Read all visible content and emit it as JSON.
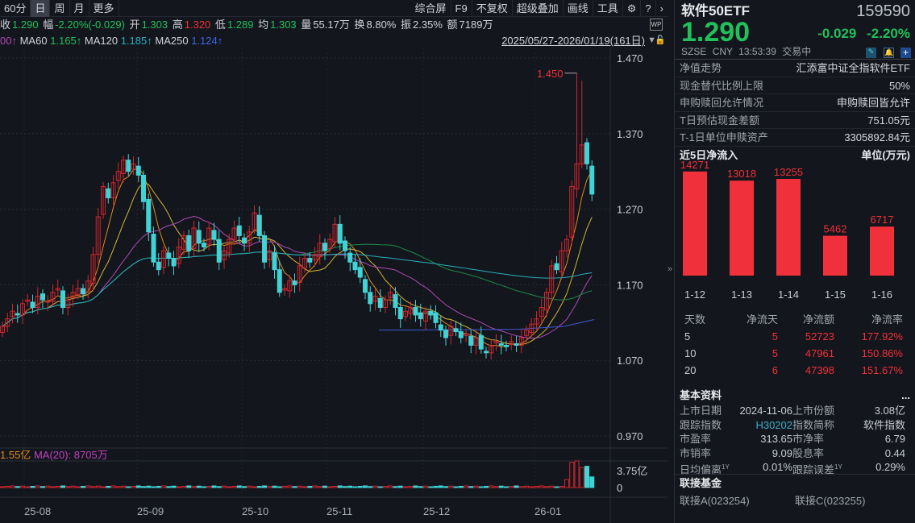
{
  "toolbar": {
    "periods": [
      "60分",
      "日",
      "周",
      "月",
      "更多"
    ],
    "active": "日",
    "right": [
      "综合屏",
      "F9",
      "不复权",
      "超级叠加",
      "画线",
      "工具"
    ]
  },
  "info": {
    "close_label": "收",
    "close": "1.290",
    "range_label": "幅",
    "range": "-2.20%(-0.029)",
    "open_label": "开",
    "open": "1.303",
    "high_label": "高",
    "high": "1.320",
    "low_label": "低",
    "low": "1.289",
    "avg_label": "均",
    "avg": "1.303",
    "vol_label": "量",
    "vol": "55.17万",
    "turn_label": "换",
    "turn": "8.80%",
    "amp_label": "振",
    "amp": "2.35%",
    "amt_label": "额",
    "amt": "7189万"
  },
  "ma": {
    "ma30_tail": "00↑",
    "ma60_label": "MA60",
    "ma60": "1.165↑",
    "ma120_label": "MA120",
    "ma120": "1.185↑",
    "ma250_label": "MA250",
    "ma250": "1.124↑"
  },
  "date_range": "2025/05/27-2026/01/19(161日)",
  "volume_info": {
    "vol": "1.55亿",
    "ma20": "MA(20): 8705万",
    "axis_top": "3.75亿",
    "axis_zero": "0"
  },
  "colors": {
    "up": "#d0262e",
    "down": "#3fd3d6",
    "ma5": "#e08a1e",
    "ma10": "#d6b43a",
    "ma20": "#b04ab8",
    "ma60": "#1e8a4a",
    "ma120": "#2ab0c0",
    "ma250": "#3a5ad8"
  },
  "chart_data": {
    "type": "candlestick",
    "y_ticks": [
      "1.470",
      "1.370",
      "1.270",
      "1.170",
      "1.070",
      "0.970"
    ],
    "ylim": [
      0.97,
      1.47
    ],
    "x_ticks": [
      "25-08",
      "25-09",
      "25-10",
      "25-11",
      "25-12",
      "26-01"
    ],
    "max_label": "1.450",
    "max_value": 1.45,
    "close": [
      1.115,
      1.125,
      1.135,
      1.13,
      1.145,
      1.15,
      1.14,
      1.155,
      1.15,
      1.148,
      1.16,
      1.165,
      1.14,
      1.15,
      1.16,
      1.165,
      1.158,
      1.175,
      1.21,
      1.26,
      1.3,
      1.285,
      1.305,
      1.32,
      1.335,
      1.32,
      1.33,
      1.315,
      1.28,
      1.24,
      1.2,
      1.19,
      1.215,
      1.205,
      1.195,
      1.22,
      1.235,
      1.215,
      1.245,
      1.225,
      1.22,
      1.245,
      1.23,
      1.2,
      1.215,
      1.23,
      1.245,
      1.235,
      1.225,
      1.24,
      1.265,
      1.235,
      1.2,
      1.215,
      1.19,
      1.16,
      1.165,
      1.175,
      1.17,
      1.195,
      1.205,
      1.2,
      1.21,
      1.225,
      1.215,
      1.23,
      1.25,
      1.225,
      1.215,
      1.2,
      1.19,
      1.18,
      1.16,
      1.145,
      1.155,
      1.14,
      1.15,
      1.16,
      1.14,
      1.125,
      1.135,
      1.14,
      1.13,
      1.125,
      1.135,
      1.13,
      1.12,
      1.11,
      1.1,
      1.115,
      1.108,
      1.1,
      1.105,
      1.09,
      1.1,
      1.085,
      1.08,
      1.09,
      1.095,
      1.09,
      1.088,
      1.095,
      1.09,
      1.1,
      1.11,
      1.118,
      1.125,
      1.14,
      1.16,
      1.195,
      1.19,
      1.215,
      1.23,
      1.3,
      1.33,
      1.355,
      1.33,
      1.29
    ],
    "volume_top_yi": 3.75
  },
  "quote": {
    "name": "软件50ETF",
    "code": "159590",
    "price": "1.290",
    "change": "-0.029",
    "pct": "-2.20%",
    "exchange": "SZSE",
    "currency": "CNY",
    "time": "13:53:39",
    "status": "交易中"
  },
  "fund_info": [
    {
      "label": "净值走势",
      "value": "汇添富中证全指软件ETF"
    },
    {
      "label": "现金替代比例上限",
      "value": "50%"
    },
    {
      "label": "申购赎回允许情况",
      "value": "申购赎回皆允许"
    },
    {
      "label": "T日预估现金差额",
      "value": "751.05元"
    },
    {
      "label": "T-1日单位申赎资产",
      "value": "3305892.84元"
    }
  ],
  "flow": {
    "title": "近5日净流入",
    "unit": "单位(万元)",
    "dates": [
      "1-12",
      "1-13",
      "1-14",
      "1-15",
      "1-16"
    ],
    "values": [
      14271,
      13018,
      13255,
      5462,
      6717
    ]
  },
  "flow_table": {
    "headers": [
      "天数",
      "净流天",
      "净流额",
      "净流率"
    ],
    "rows": [
      [
        "5",
        "5",
        "52723",
        "177.92%"
      ],
      [
        "10",
        "5",
        "47961",
        "150.86%"
      ],
      [
        "20",
        "6",
        "47398",
        "151.67%"
      ]
    ]
  },
  "basic": {
    "title": "基本资料",
    "more": "...",
    "items": [
      [
        "上市日期",
        "2024-11-06",
        "上市份额",
        "3.08亿"
      ],
      [
        "跟踪指数",
        "H30202",
        "指数简称",
        "软件指数"
      ],
      [
        "市盈率",
        "313.65",
        "市净率",
        "6.79"
      ],
      [
        "市销率",
        "9.09",
        "股息率",
        "0.44"
      ],
      [
        "日均偏离",
        "0.01%",
        "跟踪误差",
        "0.29%"
      ]
    ],
    "sup": "1Y"
  },
  "linked": {
    "title": "联接基金",
    "a": "联接A(023254)",
    "c": "联接C(023255)"
  }
}
